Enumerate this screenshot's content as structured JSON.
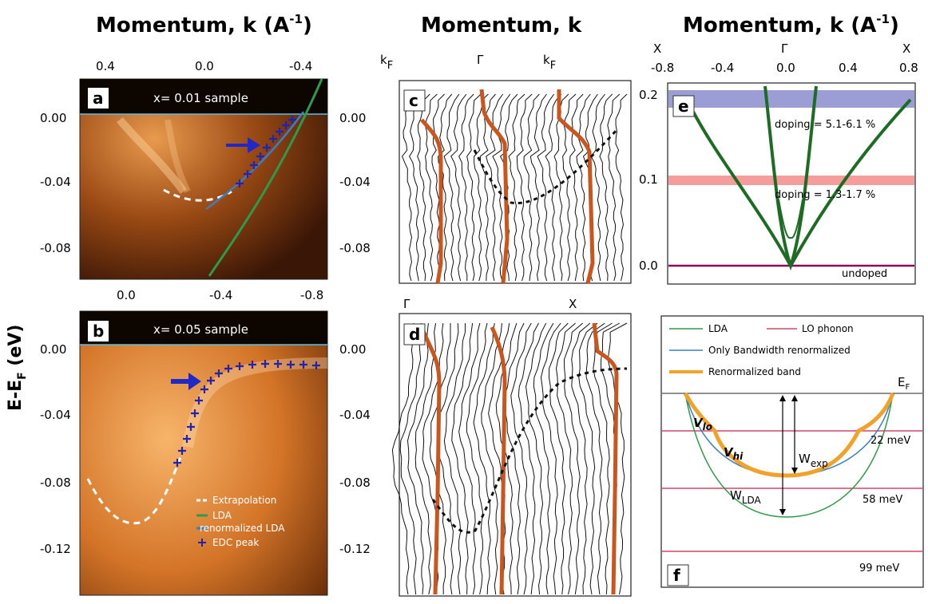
{
  "titles": {
    "ab": "Momentum, k (A",
    "ab_sup": "-1",
    "ab_close": ")",
    "cd": "Momentum, k",
    "e": "Momentum, k (A",
    "e_sup": "-1",
    "e_close": ")"
  },
  "ylabel": {
    "main": "E-E",
    "sub": "F",
    "unit": " (eV)"
  },
  "panel_a": {
    "letter": "a",
    "label": "x= 0.01 sample",
    "x_ticks": [
      "0.4",
      "0.0",
      "-0.4"
    ],
    "y_ticks": [
      "0.00",
      "-0.04",
      "-0.08"
    ]
  },
  "panel_b": {
    "letter": "b",
    "label": "x= 0.05 sample",
    "x_ticks": [
      "0.0",
      "-0.4",
      "-0.8"
    ],
    "y_ticks": [
      "0.00",
      "-0.04",
      "-0.08",
      "-0.12"
    ],
    "legend": [
      "Extrapolation",
      "LDA",
      "renormalized LDA",
      "EDC peak"
    ]
  },
  "panel_c": {
    "letter": "c",
    "k_labels": [
      "k",
      "Γ",
      "k"
    ],
    "k_sub": "F",
    "y_ticks": [
      "0.00",
      "-0.04",
      "-0.08"
    ]
  },
  "panel_d": {
    "letter": "d",
    "k_labels": [
      "Γ",
      "X"
    ],
    "y_ticks": [
      "0.00",
      "-0.04",
      "-0.08",
      "-0.12"
    ]
  },
  "panel_e": {
    "letter": "e",
    "sym_labels": [
      "X",
      "Γ",
      "X"
    ],
    "x_ticks": [
      "-0.8",
      "-0.4",
      "0.0",
      "0.4",
      "0.8"
    ],
    "y_ticks": [
      "0.2",
      "0.1",
      "0.0"
    ],
    "band_labels": [
      "doping = 5.1-6.1 %",
      "doping = 1.3-1.7 %",
      "undoped"
    ]
  },
  "panel_f": {
    "letter": "f",
    "legend": [
      "LDA",
      "LO phonon",
      "Only Bandwidth renormalized",
      "Renormalized band"
    ],
    "ef": "E",
    "ef_sub": "F",
    "energies": [
      "22 meV",
      "58 meV",
      "99 meV"
    ],
    "v_lo": "V",
    "v_lo_sub": "lo",
    "v_hi": "V",
    "v_hi_sub": "hi",
    "w_exp": "W",
    "w_exp_sub": "exp",
    "w_lda": "W",
    "w_lda_sub": "LDA"
  },
  "colors": {
    "orange": "#c8561e",
    "lda_green": "#2e9a4a",
    "renorm_blue": "#3a7fc0",
    "edc_blue": "#2323b0",
    "arrow_blue": "#2028c8",
    "band_purple": "#8a8ccc",
    "band_pink": "#f38c8c",
    "undoped_line": "#8a0a5a",
    "dark_green": "#1e6b23",
    "phonon_red": "#d0456c",
    "renorm_orange": "#f0a22a"
  }
}
